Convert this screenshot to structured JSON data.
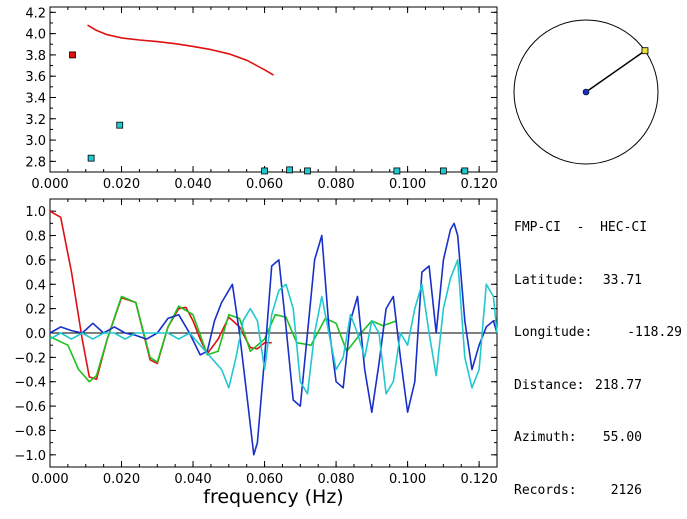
{
  "info": {
    "title": "FMP-CI  -  HEC-CI",
    "rows": [
      {
        "label": "Latitude:",
        "value": "33.71"
      },
      {
        "label": "Longitude:",
        "value": "-118.29"
      },
      {
        "label": "Distance:",
        "value": "218.77"
      },
      {
        "label": "Azimuth:",
        "value": "55.00"
      },
      {
        "label": "Records:",
        "value": "2126"
      }
    ]
  },
  "compass": {
    "azimuth_deg": 55.0
  },
  "chart_data": [
    {
      "type": "scatter",
      "title": "",
      "xlabel": "",
      "ylabel": "",
      "xlim": [
        0.0,
        0.125
      ],
      "ylim": [
        2.7,
        4.25
      ],
      "xticks": [
        "0.000",
        "0.020",
        "0.040",
        "0.060",
        "0.080",
        "0.100",
        "0.120"
      ],
      "yticks": [
        "2.8",
        "3.0",
        "3.2",
        "3.4",
        "3.6",
        "3.8",
        "4.0",
        "4.2"
      ],
      "series": [
        {
          "color": "#e01010",
          "kind": "line",
          "points": [
            [
              0.0105,
              4.08
            ],
            [
              0.013,
              4.03
            ],
            [
              0.016,
              3.99
            ],
            [
              0.02,
              3.96
            ],
            [
              0.025,
              3.94
            ],
            [
              0.03,
              3.925
            ],
            [
              0.035,
              3.905
            ],
            [
              0.04,
              3.88
            ],
            [
              0.045,
              3.85
            ],
            [
              0.05,
              3.81
            ],
            [
              0.055,
              3.75
            ],
            [
              0.06,
              3.66
            ],
            [
              0.0625,
              3.61
            ]
          ]
        },
        {
          "color": "#e01010",
          "kind": "markers",
          "points": [
            [
              0.0063,
              3.8
            ]
          ]
        },
        {
          "color": "#20c8d0",
          "kind": "markers",
          "points": [
            [
              0.0115,
              2.83
            ],
            [
              0.0195,
              3.14
            ],
            [
              0.06,
              2.71
            ],
            [
              0.067,
              2.72
            ],
            [
              0.072,
              2.71
            ],
            [
              0.097,
              2.71
            ],
            [
              0.11,
              2.71
            ],
            [
              0.116,
              2.71
            ]
          ]
        }
      ]
    },
    {
      "type": "line",
      "title": "",
      "xlabel": "frequency (Hz)",
      "ylabel": "",
      "xlim": [
        0.0,
        0.125
      ],
      "ylim": [
        -1.1,
        1.1
      ],
      "xticks": [
        "0.000",
        "0.020",
        "0.040",
        "0.060",
        "0.080",
        "0.100",
        "0.120"
      ],
      "yticks": [
        "1.0",
        "0.8",
        "0.6",
        "0.4",
        "0.2",
        "0.0",
        "-0.2",
        "-0.4",
        "-0.6",
        "-0.8",
        "-1.0"
      ],
      "series": [
        {
          "color": "#e01010",
          "x": [
            0.0,
            0.003,
            0.006,
            0.009,
            0.011,
            0.013,
            0.016,
            0.02,
            0.024,
            0.028,
            0.03,
            0.033,
            0.036,
            0.038,
            0.04,
            0.042,
            0.044,
            0.047,
            0.05,
            0.053,
            0.056,
            0.058,
            0.06,
            0.062
          ],
          "y": [
            1.0,
            0.95,
            0.5,
            -0.05,
            -0.36,
            -0.38,
            -0.05,
            0.29,
            0.25,
            -0.22,
            -0.25,
            0.05,
            0.2,
            0.21,
            0.1,
            -0.05,
            -0.17,
            -0.05,
            0.13,
            0.05,
            -0.12,
            -0.13,
            -0.08,
            -0.08
          ]
        },
        {
          "color": "#20c020",
          "x": [
            0.0,
            0.005,
            0.008,
            0.011,
            0.013,
            0.016,
            0.02,
            0.024,
            0.028,
            0.03,
            0.033,
            0.036,
            0.04,
            0.044,
            0.047,
            0.05,
            0.053,
            0.056,
            0.06,
            0.063,
            0.066,
            0.069,
            0.073,
            0.077,
            0.08,
            0.083,
            0.087,
            0.09,
            0.093,
            0.097
          ],
          "y": [
            -0.03,
            -0.1,
            -0.3,
            -0.4,
            -0.35,
            -0.05,
            0.3,
            0.25,
            -0.2,
            -0.24,
            0.05,
            0.22,
            0.15,
            -0.18,
            -0.15,
            0.15,
            0.12,
            -0.15,
            -0.05,
            0.15,
            0.13,
            -0.08,
            -0.1,
            0.12,
            0.08,
            -0.15,
            0.0,
            0.1,
            0.06,
            0.1
          ]
        },
        {
          "color": "#1830c8",
          "x": [
            0.0,
            0.003,
            0.006,
            0.009,
            0.012,
            0.015,
            0.018,
            0.021,
            0.024,
            0.027,
            0.03,
            0.033,
            0.036,
            0.039,
            0.042,
            0.044,
            0.046,
            0.048,
            0.051,
            0.053,
            0.055,
            0.057,
            0.058,
            0.06,
            0.062,
            0.064,
            0.066,
            0.068,
            0.07,
            0.072,
            0.074,
            0.076,
            0.078,
            0.08,
            0.082,
            0.084,
            0.086,
            0.088,
            0.09,
            0.092,
            0.094,
            0.096,
            0.098,
            0.1,
            0.102,
            0.104,
            0.106,
            0.108,
            0.11,
            0.112,
            0.113,
            0.114,
            0.116,
            0.118,
            0.12,
            0.122,
            0.124,
            0.125
          ],
          "y": [
            0.0,
            0.05,
            0.02,
            0.0,
            0.08,
            0.0,
            0.05,
            0.0,
            -0.02,
            -0.05,
            0.0,
            0.12,
            0.15,
            0.0,
            -0.18,
            -0.15,
            0.1,
            0.25,
            0.4,
            0.0,
            -0.5,
            -1.0,
            -0.9,
            -0.2,
            0.55,
            0.6,
            0.05,
            -0.55,
            -0.6,
            0.0,
            0.6,
            0.8,
            0.05,
            -0.4,
            -0.45,
            0.1,
            0.3,
            -0.3,
            -0.65,
            -0.25,
            0.2,
            0.3,
            -0.2,
            -0.65,
            -0.4,
            0.5,
            0.55,
            0.0,
            0.6,
            0.85,
            0.9,
            0.8,
            0.1,
            -0.3,
            -0.1,
            0.05,
            0.1,
            0.0
          ]
        },
        {
          "color": "#20c8d0",
          "x": [
            0.0,
            0.003,
            0.006,
            0.009,
            0.012,
            0.015,
            0.018,
            0.021,
            0.024,
            0.027,
            0.03,
            0.033,
            0.036,
            0.039,
            0.042,
            0.045,
            0.048,
            0.05,
            0.052,
            0.054,
            0.056,
            0.058,
            0.06,
            0.062,
            0.064,
            0.066,
            0.068,
            0.07,
            0.072,
            0.074,
            0.076,
            0.078,
            0.08,
            0.082,
            0.084,
            0.086,
            0.088,
            0.09,
            0.092,
            0.094,
            0.096,
            0.098,
            0.1,
            0.102,
            0.104,
            0.106,
            0.108,
            0.11,
            0.112,
            0.114,
            0.116,
            0.118,
            0.12,
            0.122,
            0.124,
            0.125
          ],
          "y": [
            -0.05,
            0.0,
            -0.05,
            0.0,
            -0.05,
            0.0,
            0.0,
            -0.05,
            0.0,
            0.0,
            0.0,
            0.0,
            -0.05,
            0.0,
            -0.1,
            -0.2,
            -0.3,
            -0.45,
            -0.2,
            0.1,
            0.2,
            0.1,
            -0.3,
            0.15,
            0.35,
            0.4,
            0.2,
            -0.4,
            -0.5,
            0.0,
            0.3,
            0.0,
            -0.3,
            -0.2,
            0.15,
            0.0,
            -0.2,
            0.1,
            0.0,
            -0.5,
            -0.4,
            0.0,
            -0.1,
            0.2,
            0.4,
            0.0,
            -0.35,
            0.2,
            0.45,
            0.6,
            -0.2,
            -0.45,
            -0.3,
            0.4,
            0.3,
            0.0
          ]
        }
      ]
    }
  ]
}
